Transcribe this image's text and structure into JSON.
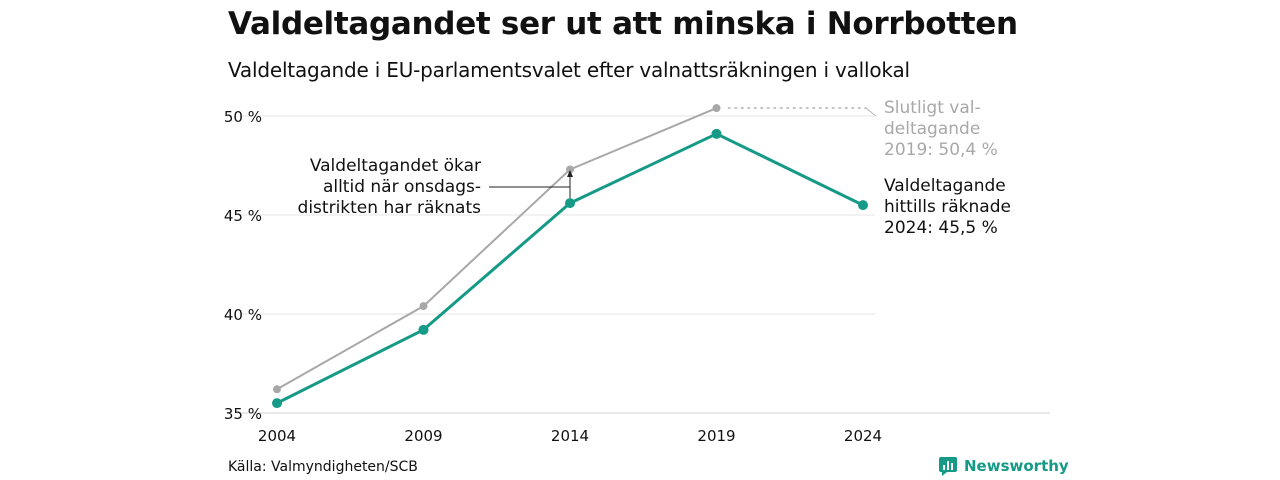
{
  "header": {
    "title": "Valdeltagandet ser ut att minska i Norrbotten",
    "subtitle": "Valdeltagande i EU-parlamentsvalet efter valnattsräkningen i vallokal"
  },
  "footer": {
    "source": "Källa: Valmyndigheten/SCB",
    "brand": "Newsworthy"
  },
  "colors": {
    "final": "#a8a8a8",
    "counted": "#159a88",
    "grid": "#e6e6e6",
    "text": "#111111"
  },
  "chart_data": {
    "type": "line",
    "title": "Valdeltagandet ser ut att minska i Norrbotten",
    "subtitle": "Valdeltagande i EU-parlamentsvalet efter valnattsräkningen i vallokal",
    "categories": [
      "2004",
      "2009",
      "2014",
      "2019",
      "2024"
    ],
    "x": [
      2004,
      2009,
      2014,
      2019,
      2024
    ],
    "ylim": [
      35,
      50
    ],
    "yticks": [
      {
        "value": 35,
        "label": "35 %"
      },
      {
        "value": 40,
        "label": "40 %"
      },
      {
        "value": 45,
        "label": "45 %"
      },
      {
        "value": 50,
        "label": "50 %"
      }
    ],
    "grid": true,
    "series": [
      {
        "key": "final",
        "x": [
          2004,
          2009,
          2014,
          2019
        ],
        "values": [
          36.2,
          40.4,
          47.3,
          50.4
        ]
      },
      {
        "key": "counted",
        "x": [
          2004,
          2009,
          2014,
          2019,
          2024
        ],
        "values": [
          35.5,
          39.2,
          45.6,
          49.1,
          45.5
        ]
      }
    ],
    "annotations": {
      "final_label": [
        "Slutligt val-",
        "deltagande",
        "2019: 50,4 %"
      ],
      "counted_label": [
        "Valdeltagande",
        "hittills räknade",
        "2024: 45,5 %"
      ],
      "note": [
        "Valdeltagandet ökar",
        "alltid när onsdags-",
        "distrikten har räknats"
      ]
    }
  }
}
